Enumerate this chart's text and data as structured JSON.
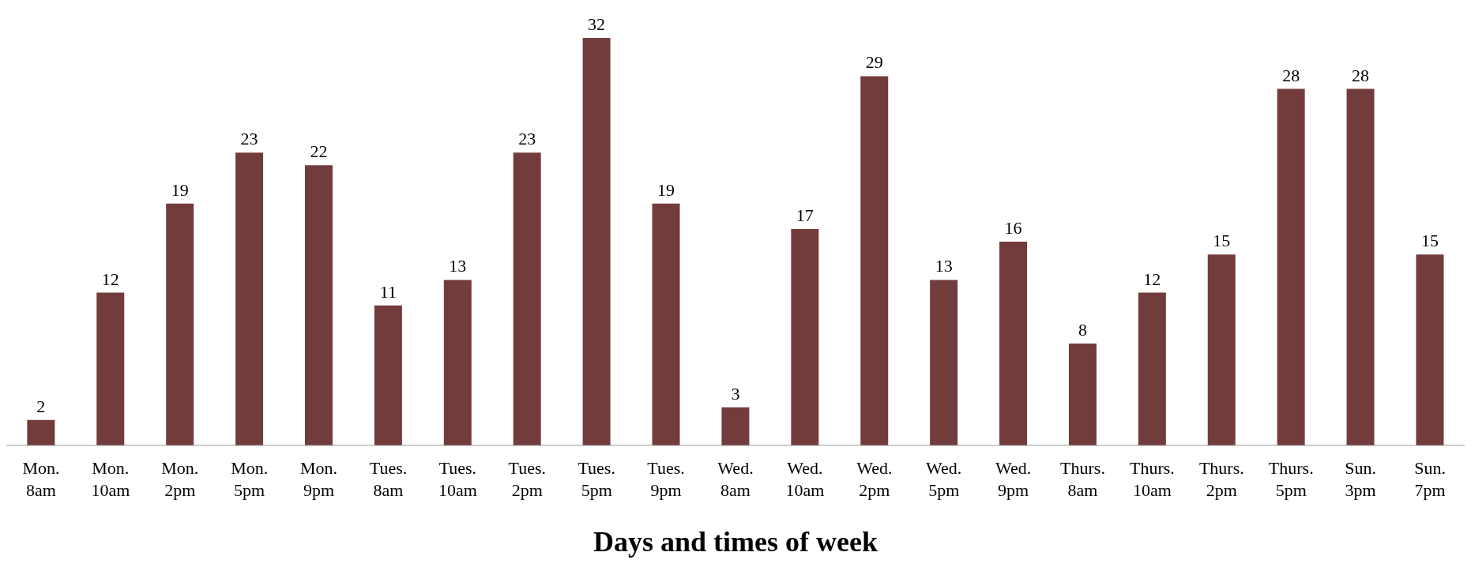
{
  "chart_data": {
    "type": "bar",
    "xlabel": "Days and times of week",
    "categories": [
      "Mon. 8am",
      "Mon. 10am",
      "Mon. 2pm",
      "Mon. 5pm",
      "Mon. 9pm",
      "Tues. 8am",
      "Tues. 10am",
      "Tues. 2pm",
      "Tues. 5pm",
      "Tues. 9pm",
      "Wed. 8am",
      "Wed. 10am",
      "Wed. 2pm",
      "Wed. 5pm",
      "Wed. 9pm",
      "Thurs. 8am",
      "Thurs. 10am",
      "Thurs. 2pm",
      "Thurs. 5pm",
      "Sun. 3pm",
      "Sun. 7pm"
    ],
    "values": [
      2,
      12,
      19,
      23,
      22,
      11,
      13,
      23,
      32,
      19,
      3,
      17,
      29,
      13,
      16,
      8,
      12,
      15,
      28,
      28,
      15
    ],
    "color": "#733c3c",
    "data_labels": true
  }
}
